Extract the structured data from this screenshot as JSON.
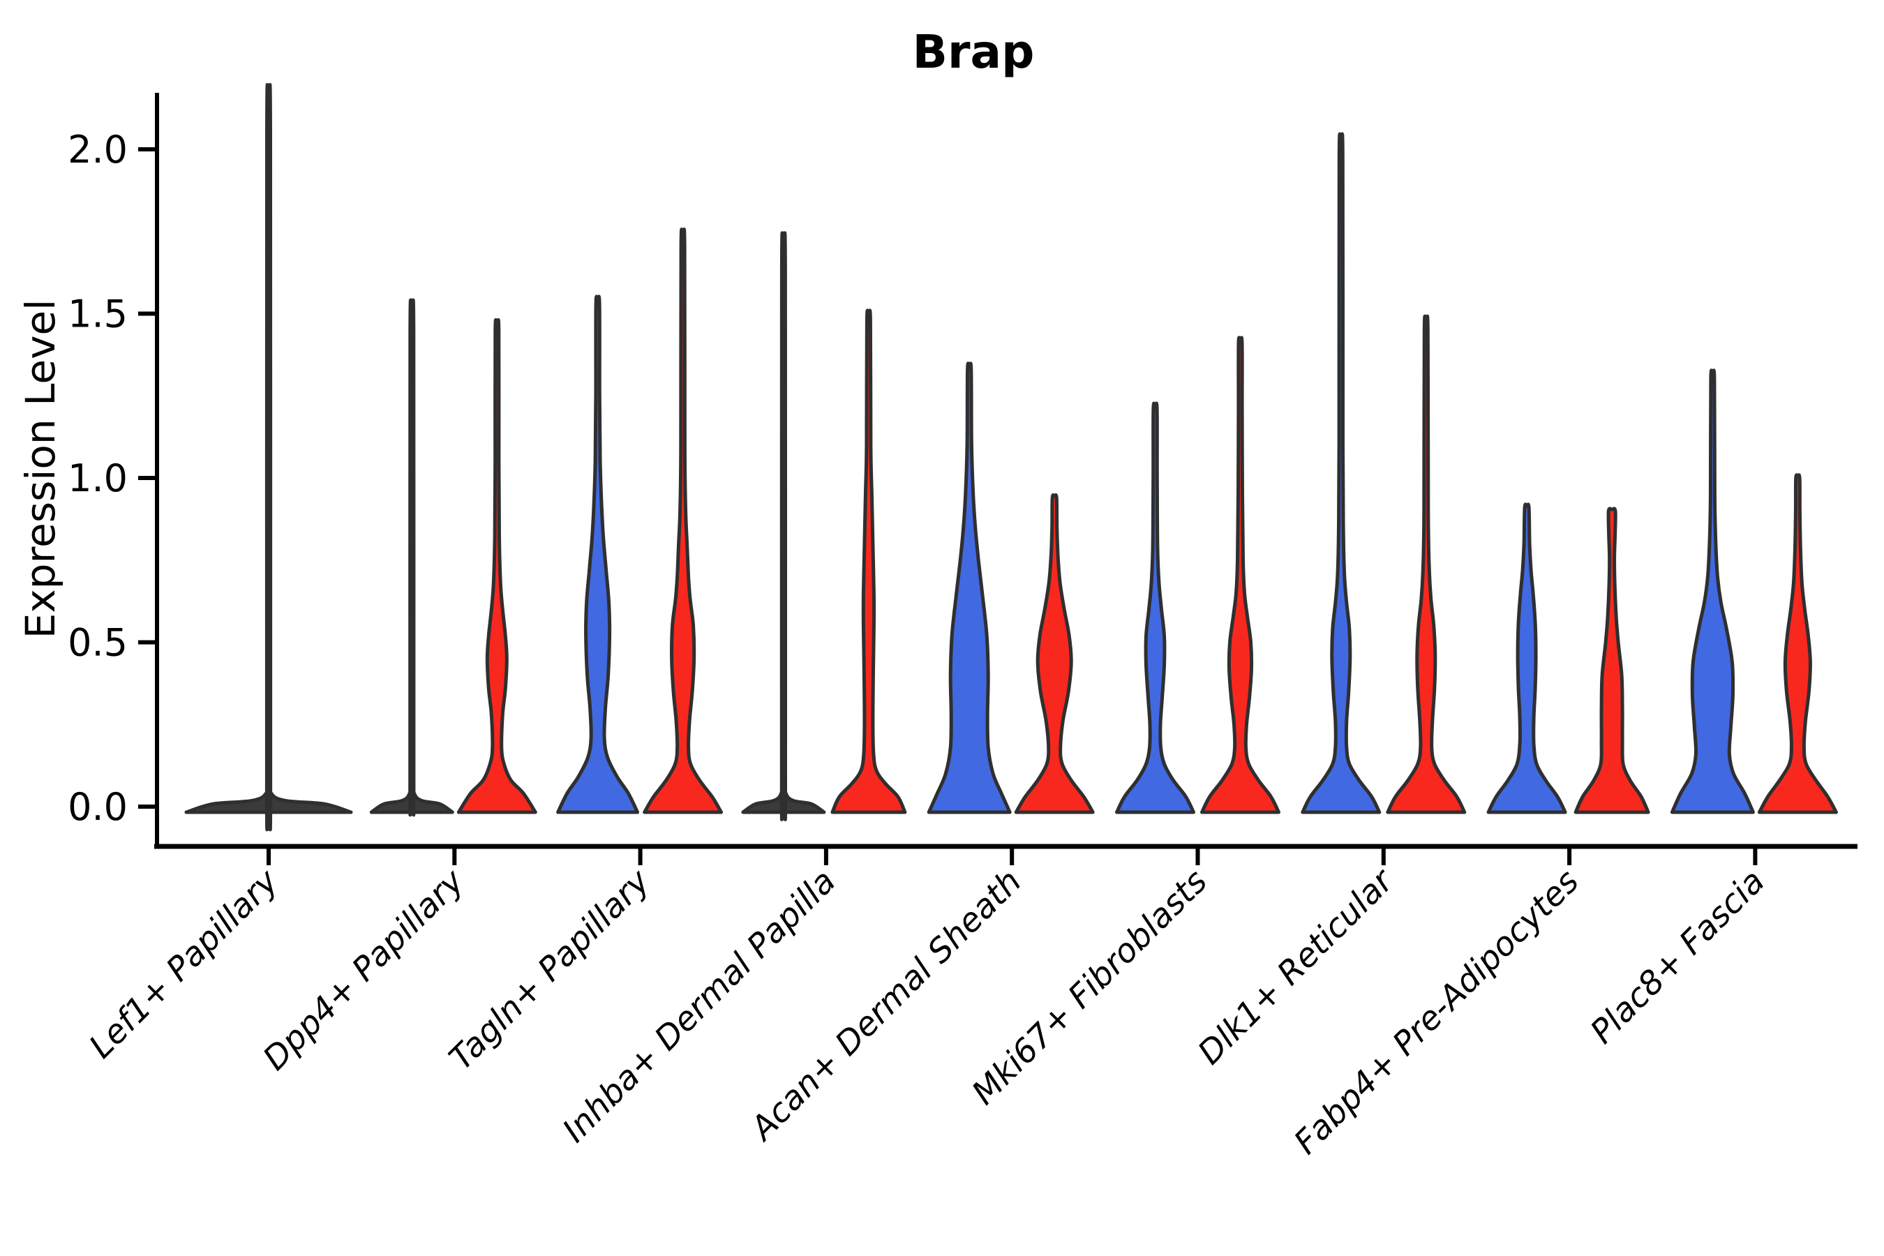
{
  "colors": {
    "blue": "#4169E1",
    "red": "#F8281E",
    "flat_dark": "#3a3a3a",
    "outline": "#2f2f2f",
    "text": "#000000",
    "background": "#ffffff"
  },
  "chart_data": {
    "type": "violin",
    "title": "Brap",
    "xlabel": "",
    "ylabel": "Expression Level",
    "ylim": [
      -0.12,
      2.17
    ],
    "yticks": [
      0.0,
      0.5,
      1.0,
      1.5,
      2.0
    ],
    "ytick_labels": [
      "0.0",
      "0.5",
      "1.0",
      "1.5",
      "2.0"
    ],
    "grid": false,
    "legend": "none",
    "split": true,
    "split_sides": {
      "left": "blue",
      "right": "red"
    },
    "categories": [
      "Lef1+ Papillary",
      "Dpp4+ Papillary",
      "Tagln+ Papillary",
      "Inhba+ Dermal Papilla",
      "Acan+ Dermal Sheath",
      "Mki67+ Fibroblasts",
      "Dlk1+ Reticular",
      "Fabp4+ Pre-Adipocytes",
      "Plac8+ Fascia"
    ],
    "violins": [
      {
        "category_index": 0,
        "side": "center",
        "fill": "flat_dark",
        "max": 2.05,
        "profile": [
          [
            0,
            118
          ],
          [
            0.008,
            80
          ],
          [
            0.018,
            24
          ],
          [
            0.04,
            4
          ],
          [
            0.09,
            2.6
          ],
          [
            2.05,
            2.5
          ]
        ]
      },
      {
        "category_index": 1,
        "side": "left",
        "fill": "flat_dark",
        "max": 1.44,
        "profile": [
          [
            0,
            58
          ],
          [
            0.008,
            40
          ],
          [
            0.018,
            14
          ],
          [
            0.04,
            3.5
          ],
          [
            0.09,
            2.6
          ],
          [
            1.44,
            2.5
          ]
        ]
      },
      {
        "category_index": 1,
        "side": "right",
        "fill": "red",
        "max": 1.45,
        "profile": [
          [
            0,
            55
          ],
          [
            0.04,
            38
          ],
          [
            0.08,
            20
          ],
          [
            0.13,
            10
          ],
          [
            0.18,
            6.5
          ],
          [
            0.28,
            8
          ],
          [
            0.36,
            12
          ],
          [
            0.45,
            14
          ],
          [
            0.52,
            12
          ],
          [
            0.6,
            8
          ],
          [
            0.68,
            5
          ],
          [
            0.82,
            3.2
          ],
          [
            1.05,
            2.6
          ],
          [
            1.45,
            2.5
          ]
        ]
      },
      {
        "category_index": 2,
        "side": "left",
        "fill": "blue",
        "max": 1.53,
        "profile": [
          [
            0,
            57
          ],
          [
            0.04,
            44
          ],
          [
            0.09,
            28
          ],
          [
            0.15,
            14
          ],
          [
            0.21,
            9.5
          ],
          [
            0.3,
            11
          ],
          [
            0.4,
            15
          ],
          [
            0.52,
            17
          ],
          [
            0.62,
            16
          ],
          [
            0.72,
            12
          ],
          [
            0.82,
            8
          ],
          [
            0.92,
            5.5
          ],
          [
            1.05,
            3.5
          ],
          [
            1.25,
            2.7
          ],
          [
            1.53,
            2.5
          ]
        ]
      },
      {
        "category_index": 2,
        "side": "right",
        "fill": "red",
        "max": 1.71,
        "profile": [
          [
            0,
            55
          ],
          [
            0.03,
            42
          ],
          [
            0.08,
            24
          ],
          [
            0.13,
            11
          ],
          [
            0.18,
            8
          ],
          [
            0.26,
            9.5
          ],
          [
            0.35,
            13.5
          ],
          [
            0.45,
            16
          ],
          [
            0.55,
            15
          ],
          [
            0.63,
            10.5
          ],
          [
            0.7,
            8
          ],
          [
            0.8,
            6
          ],
          [
            0.9,
            4
          ],
          [
            1.1,
            2.8
          ],
          [
            1.71,
            2.5
          ]
        ]
      },
      {
        "category_index": 3,
        "side": "left",
        "fill": "flat_dark",
        "max": 1.63,
        "profile": [
          [
            0,
            58
          ],
          [
            0.008,
            40
          ],
          [
            0.018,
            14
          ],
          [
            0.04,
            3.5
          ],
          [
            0.09,
            2.6
          ],
          [
            1.63,
            2.5
          ]
        ]
      },
      {
        "category_index": 3,
        "side": "right",
        "fill": "red",
        "max": 1.48,
        "profile": [
          [
            0,
            52
          ],
          [
            0.03,
            42
          ],
          [
            0.07,
            24
          ],
          [
            0.11,
            11
          ],
          [
            0.16,
            7
          ],
          [
            0.25,
            6
          ],
          [
            0.4,
            6.5
          ],
          [
            0.55,
            7.5
          ],
          [
            0.65,
            7.5
          ],
          [
            0.8,
            6
          ],
          [
            0.95,
            4.5
          ],
          [
            1.1,
            3
          ],
          [
            1.48,
            2.5
          ]
        ]
      },
      {
        "category_index": 4,
        "side": "left",
        "fill": "blue",
        "max": 1.33,
        "profile": [
          [
            0,
            58
          ],
          [
            0.04,
            46
          ],
          [
            0.1,
            34
          ],
          [
            0.18,
            27
          ],
          [
            0.28,
            26
          ],
          [
            0.4,
            27
          ],
          [
            0.52,
            25
          ],
          [
            0.64,
            19
          ],
          [
            0.75,
            13
          ],
          [
            0.85,
            8.5
          ],
          [
            0.95,
            5.5
          ],
          [
            1.1,
            3.2
          ],
          [
            1.33,
            2.6
          ]
        ]
      },
      {
        "category_index": 4,
        "side": "right",
        "fill": "red",
        "max": 0.94,
        "profile": [
          [
            0,
            55
          ],
          [
            0.03,
            42
          ],
          [
            0.08,
            24
          ],
          [
            0.13,
            11
          ],
          [
            0.18,
            8.5
          ],
          [
            0.26,
            12
          ],
          [
            0.35,
            20
          ],
          [
            0.44,
            24
          ],
          [
            0.52,
            21
          ],
          [
            0.6,
            14
          ],
          [
            0.68,
            8
          ],
          [
            0.76,
            5
          ],
          [
            0.85,
            3.5
          ],
          [
            0.94,
            3
          ]
        ]
      },
      {
        "category_index": 5,
        "side": "left",
        "fill": "blue",
        "max": 1.21,
        "profile": [
          [
            0,
            55
          ],
          [
            0.03,
            44
          ],
          [
            0.08,
            26
          ],
          [
            0.13,
            13
          ],
          [
            0.18,
            8
          ],
          [
            0.25,
            7.5
          ],
          [
            0.33,
            10
          ],
          [
            0.43,
            13
          ],
          [
            0.52,
            13
          ],
          [
            0.6,
            9
          ],
          [
            0.68,
            5.5
          ],
          [
            0.78,
            3.5
          ],
          [
            1.0,
            2.8
          ],
          [
            1.21,
            2.6
          ]
        ]
      },
      {
        "category_index": 5,
        "side": "right",
        "fill": "red",
        "max": 1.41,
        "profile": [
          [
            0,
            55
          ],
          [
            0.03,
            44
          ],
          [
            0.08,
            26
          ],
          [
            0.13,
            12
          ],
          [
            0.18,
            8
          ],
          [
            0.25,
            9
          ],
          [
            0.33,
            13
          ],
          [
            0.42,
            16
          ],
          [
            0.5,
            15
          ],
          [
            0.58,
            10
          ],
          [
            0.65,
            6
          ],
          [
            0.75,
            4
          ],
          [
            0.95,
            3
          ],
          [
            1.2,
            2.6
          ],
          [
            1.41,
            2.5
          ]
        ]
      },
      {
        "category_index": 6,
        "side": "left",
        "fill": "blue",
        "max": 1.98,
        "profile": [
          [
            0,
            55
          ],
          [
            0.03,
            44
          ],
          [
            0.08,
            26
          ],
          [
            0.13,
            12
          ],
          [
            0.18,
            8
          ],
          [
            0.26,
            8
          ],
          [
            0.35,
            11
          ],
          [
            0.45,
            13
          ],
          [
            0.54,
            12
          ],
          [
            0.62,
            8
          ],
          [
            0.7,
            5
          ],
          [
            0.82,
            3.5
          ],
          [
            1.1,
            2.7
          ],
          [
            1.98,
            2.5
          ]
        ]
      },
      {
        "category_index": 6,
        "side": "right",
        "fill": "red",
        "max": 1.45,
        "profile": [
          [
            0,
            55
          ],
          [
            0.03,
            44
          ],
          [
            0.08,
            26
          ],
          [
            0.13,
            12
          ],
          [
            0.18,
            8
          ],
          [
            0.26,
            9
          ],
          [
            0.36,
            12
          ],
          [
            0.46,
            13
          ],
          [
            0.55,
            11
          ],
          [
            0.63,
            7
          ],
          [
            0.72,
            4.5
          ],
          [
            0.9,
            3
          ],
          [
            1.45,
            2.5
          ]
        ]
      },
      {
        "category_index": 7,
        "side": "left",
        "fill": "blue",
        "max": 0.91,
        "profile": [
          [
            0,
            55
          ],
          [
            0.03,
            44
          ],
          [
            0.08,
            27
          ],
          [
            0.13,
            14
          ],
          [
            0.19,
            10
          ],
          [
            0.27,
            10
          ],
          [
            0.36,
            12
          ],
          [
            0.46,
            13
          ],
          [
            0.56,
            12
          ],
          [
            0.65,
            9
          ],
          [
            0.72,
            6
          ],
          [
            0.8,
            4
          ],
          [
            0.91,
            3
          ]
        ]
      },
      {
        "category_index": 7,
        "side": "right",
        "fill": "red",
        "max": 0.9,
        "profile": [
          [
            0,
            52
          ],
          [
            0.03,
            42
          ],
          [
            0.08,
            26
          ],
          [
            0.13,
            16
          ],
          [
            0.2,
            15
          ],
          [
            0.3,
            15
          ],
          [
            0.4,
            14
          ],
          [
            0.5,
            9
          ],
          [
            0.58,
            6
          ],
          [
            0.68,
            4
          ],
          [
            0.76,
            3.5
          ],
          [
            0.83,
            4.5
          ],
          [
            0.9,
            4.8
          ]
        ]
      },
      {
        "category_index": 8,
        "side": "left",
        "fill": "blue",
        "max": 1.3,
        "profile": [
          [
            0,
            58
          ],
          [
            0.04,
            46
          ],
          [
            0.1,
            30
          ],
          [
            0.16,
            24
          ],
          [
            0.24,
            26
          ],
          [
            0.34,
            29
          ],
          [
            0.44,
            28
          ],
          [
            0.54,
            20
          ],
          [
            0.62,
            12
          ],
          [
            0.7,
            7
          ],
          [
            0.8,
            4.5
          ],
          [
            0.95,
            3
          ],
          [
            1.3,
            2.5
          ]
        ]
      },
      {
        "category_index": 8,
        "side": "right",
        "fill": "red",
        "max": 1.0,
        "profile": [
          [
            0,
            55
          ],
          [
            0.03,
            43
          ],
          [
            0.08,
            26
          ],
          [
            0.13,
            12
          ],
          [
            0.18,
            9
          ],
          [
            0.26,
            11
          ],
          [
            0.35,
            16
          ],
          [
            0.44,
            18
          ],
          [
            0.52,
            15
          ],
          [
            0.6,
            10
          ],
          [
            0.68,
            6
          ],
          [
            0.78,
            4
          ],
          [
            0.9,
            3
          ],
          [
            1.0,
            2.7
          ]
        ]
      }
    ]
  }
}
